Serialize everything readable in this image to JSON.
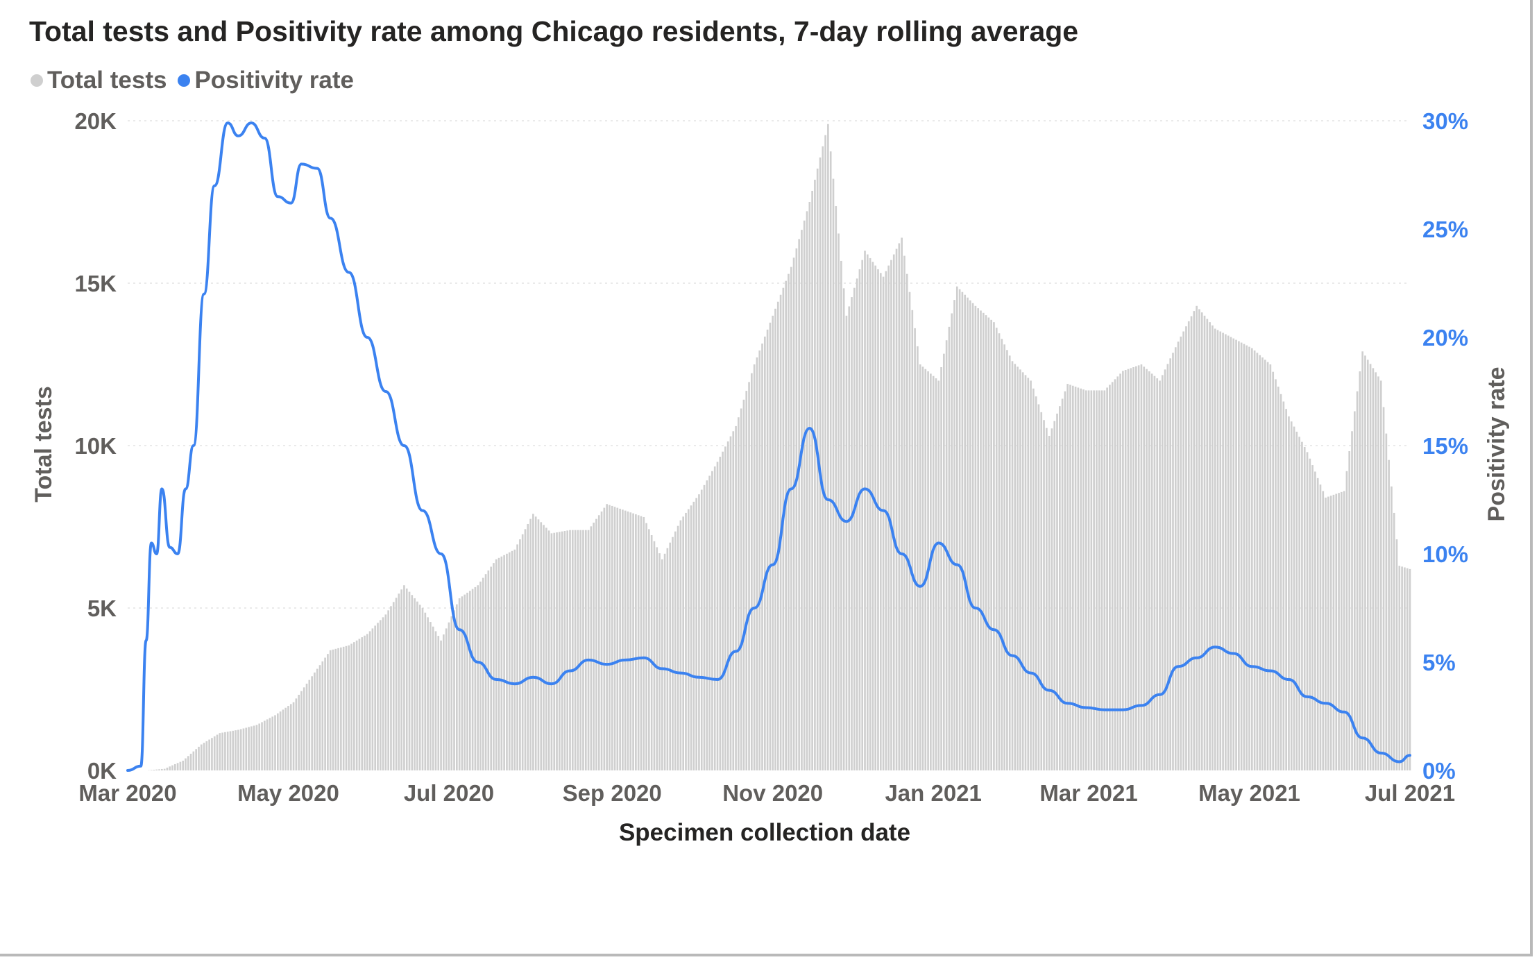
{
  "colors": {
    "bars": "#cfcfcf",
    "line": "#3b82f0",
    "right_axis": "#3b82f0",
    "grid": "#e4e4e4"
  },
  "chart_data": {
    "type": "bar",
    "title": "Total tests and Positivity rate among Chicago residents, 7-day rolling average",
    "xlabel": "Specimen collection date",
    "ylabel": "Total tests",
    "y2label": "Positivity rate",
    "ylim": [
      0,
      20000
    ],
    "y2lim": [
      0,
      30
    ],
    "legend_position": "top-left",
    "grid": true,
    "yticks": [
      "0K",
      "5K",
      "10K",
      "15K",
      "20K"
    ],
    "y2ticks": [
      "0%",
      "5%",
      "10%",
      "15%",
      "20%",
      "25%",
      "30%"
    ],
    "xticks": [
      "Mar 2020",
      "May 2020",
      "Jul 2020",
      "Sep 2020",
      "Nov 2020",
      "Jan 2021",
      "Mar 2021",
      "May 2021",
      "Jul 2021"
    ],
    "x_start": "2020-03-01",
    "x_end": "2021-07-01",
    "series": [
      {
        "name": "Total tests",
        "kind": "bar",
        "axis": "left",
        "points": [
          [
            "2020-03-01",
            0
          ],
          [
            "2020-03-08",
            0
          ],
          [
            "2020-03-15",
            50
          ],
          [
            "2020-03-22",
            300
          ],
          [
            "2020-03-29",
            800
          ],
          [
            "2020-04-05",
            1150
          ],
          [
            "2020-04-12",
            1250
          ],
          [
            "2020-04-19",
            1400
          ],
          [
            "2020-04-26",
            1700
          ],
          [
            "2020-05-03",
            2100
          ],
          [
            "2020-05-10",
            2900
          ],
          [
            "2020-05-17",
            3700
          ],
          [
            "2020-05-24",
            3850
          ],
          [
            "2020-05-31",
            4200
          ],
          [
            "2020-06-07",
            4800
          ],
          [
            "2020-06-14",
            5700
          ],
          [
            "2020-06-21",
            5000
          ],
          [
            "2020-06-28",
            4000
          ],
          [
            "2020-07-05",
            5300
          ],
          [
            "2020-07-12",
            5700
          ],
          [
            "2020-07-19",
            6500
          ],
          [
            "2020-07-26",
            6800
          ],
          [
            "2020-08-02",
            7900
          ],
          [
            "2020-08-09",
            7300
          ],
          [
            "2020-08-16",
            7400
          ],
          [
            "2020-08-23",
            7400
          ],
          [
            "2020-08-30",
            8200
          ],
          [
            "2020-09-06",
            8000
          ],
          [
            "2020-09-13",
            7800
          ],
          [
            "2020-09-20",
            6500
          ],
          [
            "2020-09-27",
            7700
          ],
          [
            "2020-10-04",
            8500
          ],
          [
            "2020-10-11",
            9500
          ],
          [
            "2020-10-18",
            10600
          ],
          [
            "2020-10-25",
            12500
          ],
          [
            "2020-11-01",
            14000
          ],
          [
            "2020-11-08",
            15500
          ],
          [
            "2020-11-15",
            17500
          ],
          [
            "2020-11-22",
            19900
          ],
          [
            "2020-11-29",
            14000
          ],
          [
            "2020-12-06",
            16000
          ],
          [
            "2020-12-13",
            15200
          ],
          [
            "2020-12-20",
            16400
          ],
          [
            "2020-12-27",
            12500
          ],
          [
            "2021-01-03",
            12000
          ],
          [
            "2021-01-10",
            14900
          ],
          [
            "2021-01-17",
            14300
          ],
          [
            "2021-01-24",
            13800
          ],
          [
            "2021-01-31",
            12600
          ],
          [
            "2021-02-07",
            12000
          ],
          [
            "2021-02-14",
            10300
          ],
          [
            "2021-02-21",
            11900
          ],
          [
            "2021-02-28",
            11700
          ],
          [
            "2021-03-07",
            11700
          ],
          [
            "2021-03-14",
            12300
          ],
          [
            "2021-03-21",
            12500
          ],
          [
            "2021-03-28",
            12000
          ],
          [
            "2021-04-04",
            13200
          ],
          [
            "2021-04-11",
            14300
          ],
          [
            "2021-04-18",
            13600
          ],
          [
            "2021-04-25",
            13300
          ],
          [
            "2021-05-02",
            13000
          ],
          [
            "2021-05-09",
            12500
          ],
          [
            "2021-05-16",
            10900
          ],
          [
            "2021-05-23",
            9800
          ],
          [
            "2021-05-30",
            8400
          ],
          [
            "2021-06-06",
            8600
          ],
          [
            "2021-06-13",
            12900
          ],
          [
            "2021-06-20",
            12000
          ],
          [
            "2021-06-27",
            6300
          ],
          [
            "2021-07-01",
            6200
          ]
        ]
      },
      {
        "name": "Positivity rate",
        "kind": "line",
        "axis": "right",
        "points": [
          [
            "2020-03-01",
            0
          ],
          [
            "2020-03-06",
            0.2
          ],
          [
            "2020-03-08",
            6.0
          ],
          [
            "2020-03-10",
            10.5
          ],
          [
            "2020-03-12",
            10.0
          ],
          [
            "2020-03-14",
            13.0
          ],
          [
            "2020-03-17",
            10.3
          ],
          [
            "2020-03-20",
            10.0
          ],
          [
            "2020-03-23",
            13.0
          ],
          [
            "2020-03-26",
            15.0
          ],
          [
            "2020-03-30",
            22.0
          ],
          [
            "2020-04-03",
            27.0
          ],
          [
            "2020-04-08",
            29.9
          ],
          [
            "2020-04-12",
            29.3
          ],
          [
            "2020-04-17",
            29.9
          ],
          [
            "2020-04-22",
            29.2
          ],
          [
            "2020-04-27",
            26.5
          ],
          [
            "2020-05-02",
            26.2
          ],
          [
            "2020-05-06",
            28.0
          ],
          [
            "2020-05-12",
            27.8
          ],
          [
            "2020-05-17",
            25.5
          ],
          [
            "2020-05-24",
            23.0
          ],
          [
            "2020-05-31",
            20.0
          ],
          [
            "2020-06-07",
            17.5
          ],
          [
            "2020-06-14",
            15.0
          ],
          [
            "2020-06-21",
            12.0
          ],
          [
            "2020-06-28",
            10.0
          ],
          [
            "2020-07-05",
            6.5
          ],
          [
            "2020-07-12",
            5.0
          ],
          [
            "2020-07-19",
            4.2
          ],
          [
            "2020-07-26",
            4.0
          ],
          [
            "2020-08-02",
            4.3
          ],
          [
            "2020-08-09",
            4.0
          ],
          [
            "2020-08-16",
            4.6
          ],
          [
            "2020-08-23",
            5.1
          ],
          [
            "2020-08-30",
            4.9
          ],
          [
            "2020-09-06",
            5.1
          ],
          [
            "2020-09-13",
            5.2
          ],
          [
            "2020-09-20",
            4.7
          ],
          [
            "2020-09-27",
            4.5
          ],
          [
            "2020-10-04",
            4.3
          ],
          [
            "2020-10-11",
            4.2
          ],
          [
            "2020-10-18",
            5.5
          ],
          [
            "2020-10-25",
            7.5
          ],
          [
            "2020-11-01",
            9.5
          ],
          [
            "2020-11-08",
            13.0
          ],
          [
            "2020-11-15",
            15.8
          ],
          [
            "2020-11-22",
            12.5
          ],
          [
            "2020-11-29",
            11.5
          ],
          [
            "2020-12-06",
            13.0
          ],
          [
            "2020-12-13",
            12.0
          ],
          [
            "2020-12-20",
            10.0
          ],
          [
            "2020-12-27",
            8.5
          ],
          [
            "2021-01-03",
            10.5
          ],
          [
            "2021-01-10",
            9.5
          ],
          [
            "2021-01-17",
            7.5
          ],
          [
            "2021-01-24",
            6.5
          ],
          [
            "2021-01-31",
            5.3
          ],
          [
            "2021-02-07",
            4.5
          ],
          [
            "2021-02-14",
            3.7
          ],
          [
            "2021-02-21",
            3.1
          ],
          [
            "2021-02-28",
            2.9
          ],
          [
            "2021-03-07",
            2.8
          ],
          [
            "2021-03-14",
            2.8
          ],
          [
            "2021-03-21",
            3.0
          ],
          [
            "2021-03-28",
            3.5
          ],
          [
            "2021-04-04",
            4.8
          ],
          [
            "2021-04-11",
            5.2
          ],
          [
            "2021-04-18",
            5.7
          ],
          [
            "2021-04-25",
            5.4
          ],
          [
            "2021-05-02",
            4.8
          ],
          [
            "2021-05-09",
            4.6
          ],
          [
            "2021-05-16",
            4.2
          ],
          [
            "2021-05-23",
            3.4
          ],
          [
            "2021-05-30",
            3.1
          ],
          [
            "2021-06-06",
            2.7
          ],
          [
            "2021-06-13",
            1.5
          ],
          [
            "2021-06-20",
            0.8
          ],
          [
            "2021-06-27",
            0.4
          ],
          [
            "2021-07-01",
            0.7
          ]
        ]
      }
    ]
  }
}
